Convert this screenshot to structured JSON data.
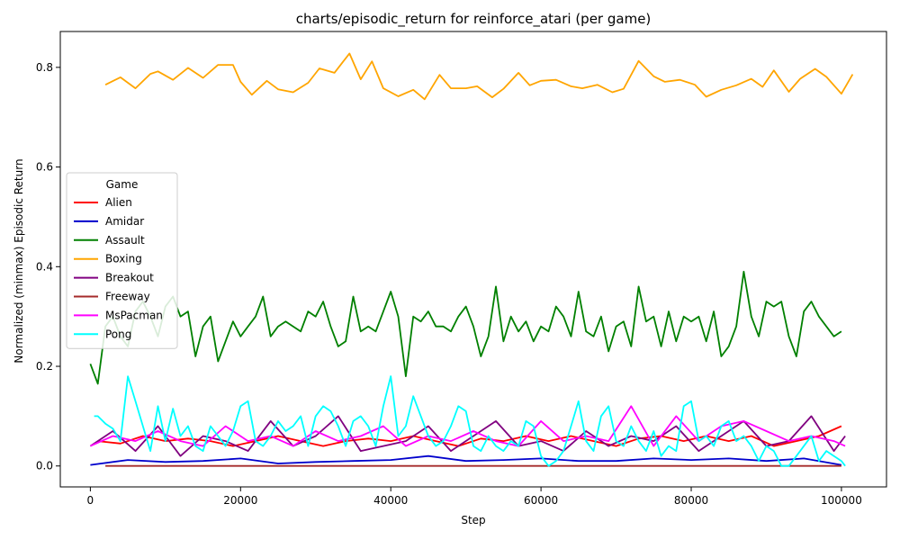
{
  "chart_data": {
    "type": "line",
    "title": "charts/episodic_return for reinforce_atari (per game)",
    "xlabel": "Step",
    "ylabel": "Normalized (minmax) Episodic Return",
    "xlim": [
      -4000,
      106000
    ],
    "ylim": [
      -0.042,
      0.872
    ],
    "xticks": [
      0,
      20000,
      40000,
      60000,
      80000,
      100000
    ],
    "yticks": [
      0.0,
      0.2,
      0.4,
      0.6,
      0.8
    ],
    "grid": false,
    "legend": {
      "title": "Game",
      "placement": "center-left"
    },
    "series": [
      {
        "name": "Alien",
        "color": "#ff0000",
        "x": [
          1000,
          4000,
          7000,
          10000,
          13000,
          16000,
          19000,
          22000,
          25000,
          28000,
          31000,
          34000,
          37000,
          40000,
          43000,
          46000,
          49000,
          52000,
          55000,
          58000,
          61000,
          64000,
          67000,
          70000,
          73000,
          76000,
          79000,
          82000,
          85000,
          88000,
          91000,
          94000,
          97000,
          100000
        ],
        "y": [
          0.05,
          0.045,
          0.06,
          0.05,
          0.055,
          0.05,
          0.04,
          0.05,
          0.06,
          0.05,
          0.04,
          0.05,
          0.055,
          0.05,
          0.06,
          0.05,
          0.04,
          0.055,
          0.05,
          0.06,
          0.05,
          0.06,
          0.05,
          0.04,
          0.055,
          0.06,
          0.05,
          0.06,
          0.05,
          0.06,
          0.04,
          0.05,
          0.06,
          0.08
        ]
      },
      {
        "name": "Amidar",
        "color": "#0000cc",
        "x": [
          0,
          5000,
          10000,
          15000,
          20000,
          25000,
          30000,
          35000,
          40000,
          45000,
          50000,
          55000,
          60000,
          65000,
          70000,
          75000,
          80000,
          85000,
          90000,
          95000,
          100000
        ],
        "y": [
          0.002,
          0.012,
          0.008,
          0.01,
          0.015,
          0.005,
          0.008,
          0.01,
          0.012,
          0.02,
          0.01,
          0.012,
          0.015,
          0.01,
          0.01,
          0.015,
          0.012,
          0.015,
          0.01,
          0.015,
          0.002
        ]
      },
      {
        "name": "Assault",
        "color": "#008000",
        "x": [
          0,
          1000,
          2000,
          3000,
          4000,
          5000,
          6000,
          7000,
          8000,
          9000,
          10000,
          11000,
          12000,
          13000,
          14000,
          15000,
          16000,
          17000,
          18000,
          19000,
          20000,
          21000,
          22000,
          23000,
          24000,
          25000,
          26000,
          27000,
          28000,
          29000,
          30000,
          31000,
          32000,
          33000,
          34000,
          35000,
          36000,
          37000,
          38000,
          39000,
          40000,
          41000,
          42000,
          43000,
          44000,
          45000,
          46000,
          47000,
          48000,
          49000,
          50000,
          51000,
          52000,
          53000,
          54000,
          55000,
          56000,
          57000,
          58000,
          59000,
          60000,
          61000,
          62000,
          63000,
          64000,
          65000,
          66000,
          67000,
          68000,
          69000,
          70000,
          71000,
          72000,
          73000,
          74000,
          75000,
          76000,
          77000,
          78000,
          79000,
          80000,
          81000,
          82000,
          83000,
          84000,
          85000,
          86000,
          87000,
          88000,
          89000,
          90000,
          91000,
          92000,
          93000,
          94000,
          95000,
          96000,
          97000,
          98000,
          99000,
          100000
        ],
        "y": [
          0.205,
          0.165,
          0.28,
          0.3,
          0.26,
          0.24,
          0.31,
          0.33,
          0.3,
          0.26,
          0.32,
          0.34,
          0.3,
          0.31,
          0.22,
          0.28,
          0.3,
          0.21,
          0.25,
          0.29,
          0.26,
          0.28,
          0.3,
          0.34,
          0.26,
          0.28,
          0.29,
          0.28,
          0.27,
          0.31,
          0.3,
          0.33,
          0.28,
          0.24,
          0.25,
          0.34,
          0.27,
          0.28,
          0.27,
          0.31,
          0.35,
          0.3,
          0.18,
          0.3,
          0.29,
          0.31,
          0.28,
          0.28,
          0.27,
          0.3,
          0.32,
          0.28,
          0.22,
          0.26,
          0.36,
          0.25,
          0.3,
          0.27,
          0.29,
          0.25,
          0.28,
          0.27,
          0.32,
          0.3,
          0.26,
          0.35,
          0.27,
          0.26,
          0.3,
          0.23,
          0.28,
          0.29,
          0.24,
          0.36,
          0.29,
          0.3,
          0.24,
          0.31,
          0.25,
          0.3,
          0.29,
          0.3,
          0.25,
          0.31,
          0.22,
          0.24,
          0.28,
          0.39,
          0.3,
          0.26,
          0.33,
          0.32,
          0.33,
          0.26,
          0.22,
          0.31,
          0.33,
          0.3,
          0.28,
          0.26,
          0.27
        ]
      },
      {
        "name": "Boxing",
        "color": "#ffa500",
        "x": [
          2000,
          4000,
          6000,
          8000,
          9000,
          11000,
          13000,
          15000,
          17000,
          19000,
          20000,
          21500,
          23500,
          25000,
          27000,
          29000,
          30500,
          32500,
          34500,
          36000,
          37500,
          39000,
          41000,
          43000,
          44500,
          46500,
          48000,
          50000,
          51500,
          53500,
          55000,
          57000,
          58500,
          60000,
          62000,
          64000,
          65500,
          67500,
          69500,
          71000,
          73000,
          75000,
          76500,
          78500,
          80500,
          82000,
          84000,
          86000,
          88000,
          89500,
          91000,
          93000,
          94500,
          96500,
          98000,
          100000,
          101500
        ],
        "y": [
          0.765,
          0.78,
          0.758,
          0.787,
          0.792,
          0.775,
          0.799,
          0.779,
          0.805,
          0.805,
          0.771,
          0.745,
          0.773,
          0.756,
          0.75,
          0.769,
          0.798,
          0.789,
          0.828,
          0.776,
          0.812,
          0.758,
          0.742,
          0.755,
          0.736,
          0.785,
          0.758,
          0.758,
          0.762,
          0.74,
          0.757,
          0.789,
          0.764,
          0.773,
          0.775,
          0.762,
          0.758,
          0.765,
          0.75,
          0.757,
          0.813,
          0.782,
          0.771,
          0.775,
          0.765,
          0.741,
          0.755,
          0.764,
          0.777,
          0.761,
          0.794,
          0.751,
          0.777,
          0.797,
          0.781,
          0.747,
          0.786
        ]
      },
      {
        "name": "Breakout",
        "color": "#800080",
        "x": [
          0,
          3000,
          6000,
          9000,
          12000,
          15000,
          18000,
          21000,
          24000,
          27000,
          30000,
          33000,
          36000,
          39000,
          42000,
          45000,
          48000,
          51000,
          54000,
          57000,
          60000,
          63000,
          66000,
          69000,
          72000,
          75000,
          78000,
          81000,
          84000,
          87000,
          90000,
          93000,
          96000,
          99000,
          100500
        ],
        "y": [
          0.04,
          0.07,
          0.03,
          0.08,
          0.02,
          0.06,
          0.05,
          0.03,
          0.09,
          0.04,
          0.06,
          0.1,
          0.03,
          0.04,
          0.05,
          0.08,
          0.03,
          0.06,
          0.09,
          0.04,
          0.05,
          0.03,
          0.07,
          0.04,
          0.06,
          0.05,
          0.08,
          0.03,
          0.06,
          0.09,
          0.04,
          0.05,
          0.1,
          0.03,
          0.06
        ]
      },
      {
        "name": "Freeway",
        "color": "#a52a2a",
        "x": [
          2000,
          100000
        ],
        "y": [
          0.0,
          0.0
        ]
      },
      {
        "name": "MsPacman",
        "color": "#ff00ff",
        "x": [
          0,
          3000,
          6000,
          9000,
          12000,
          15000,
          18000,
          21000,
          24000,
          27000,
          30000,
          33000,
          36000,
          39000,
          42000,
          45000,
          48000,
          51000,
          54000,
          57000,
          60000,
          63000,
          66000,
          69000,
          72000,
          75000,
          78000,
          81000,
          84000,
          87000,
          90000,
          93000,
          96000,
          99000,
          100500
        ],
        "y": [
          0.04,
          0.06,
          0.05,
          0.07,
          0.05,
          0.04,
          0.08,
          0.05,
          0.06,
          0.04,
          0.07,
          0.05,
          0.06,
          0.08,
          0.04,
          0.06,
          0.05,
          0.07,
          0.05,
          0.04,
          0.09,
          0.05,
          0.06,
          0.05,
          0.12,
          0.04,
          0.1,
          0.05,
          0.08,
          0.09,
          0.07,
          0.05,
          0.06,
          0.05,
          0.04
        ]
      },
      {
        "name": "Pong",
        "color": "#00ffff",
        "x": [
          500,
          1000,
          2000,
          3000,
          4000,
          5000,
          6000,
          7000,
          8000,
          9000,
          10000,
          11000,
          12000,
          13000,
          14000,
          15000,
          16000,
          17000,
          18000,
          19000,
          20000,
          21000,
          22000,
          23000,
          24000,
          25000,
          26000,
          27000,
          28000,
          29000,
          30000,
          31000,
          32000,
          33000,
          34000,
          35000,
          36000,
          37000,
          38000,
          39000,
          40000,
          41000,
          42000,
          43000,
          44000,
          45000,
          46000,
          47000,
          48000,
          49000,
          50000,
          51000,
          52000,
          53000,
          54000,
          55000,
          56000,
          57000,
          58000,
          59000,
          60000,
          61000,
          62000,
          63000,
          64000,
          65000,
          66000,
          67000,
          68000,
          69000,
          70000,
          71000,
          72000,
          73000,
          74000,
          75000,
          76000,
          77000,
          78000,
          79000,
          80000,
          81000,
          82000,
          83000,
          84000,
          85000,
          86000,
          87000,
          88000,
          89000,
          90000,
          91000,
          92000,
          93000,
          94000,
          95000,
          96000,
          97000,
          98000,
          99000,
          100000,
          100500
        ],
        "y": [
          0.1,
          0.1,
          0.085,
          0.075,
          0.05,
          0.18,
          0.13,
          0.08,
          0.03,
          0.12,
          0.05,
          0.115,
          0.06,
          0.08,
          0.04,
          0.03,
          0.08,
          0.06,
          0.04,
          0.07,
          0.12,
          0.13,
          0.05,
          0.04,
          0.06,
          0.09,
          0.07,
          0.08,
          0.1,
          0.04,
          0.1,
          0.12,
          0.11,
          0.08,
          0.04,
          0.09,
          0.1,
          0.08,
          0.04,
          0.12,
          0.18,
          0.06,
          0.08,
          0.14,
          0.1,
          0.06,
          0.04,
          0.05,
          0.08,
          0.12,
          0.11,
          0.04,
          0.03,
          0.06,
          0.04,
          0.03,
          0.05,
          0.04,
          0.09,
          0.08,
          0.02,
          0.0,
          0.01,
          0.03,
          0.08,
          0.13,
          0.05,
          0.03,
          0.1,
          0.12,
          0.05,
          0.04,
          0.08,
          0.05,
          0.03,
          0.07,
          0.02,
          0.04,
          0.03,
          0.12,
          0.13,
          0.05,
          0.06,
          0.04,
          0.08,
          0.09,
          0.05,
          0.06,
          0.04,
          0.01,
          0.04,
          0.03,
          0.0,
          0.0,
          0.02,
          0.04,
          0.06,
          0.01,
          0.03,
          0.02,
          0.01,
          0.0
        ]
      }
    ]
  }
}
